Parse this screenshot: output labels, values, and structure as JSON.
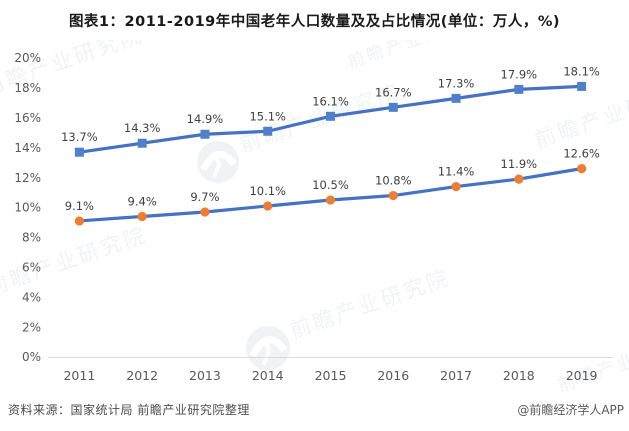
{
  "title": "图表1：2011-2019年中国老年人口数量及及占比情况(单位：万人，%)",
  "chart_data": {
    "type": "line",
    "title": "图表1：2011-2019年中国老年人口数量及及占比情况(单位：万人，%)",
    "categories": [
      "2011",
      "2012",
      "2013",
      "2014",
      "2015",
      "2016",
      "2017",
      "2018",
      "2019"
    ],
    "series": [
      {
        "id": "upper-line",
        "marker": "square",
        "color": "#4472C4",
        "marker_color": "#4E81C9",
        "values": [
          13.7,
          14.3,
          14.9,
          15.1,
          16.1,
          16.7,
          17.3,
          17.9,
          18.1
        ],
        "labels": [
          "13.7%",
          "14.3%",
          "14.9%",
          "15.1%",
          "16.1%",
          "16.7%",
          "17.3%",
          "17.9%",
          "18.1%"
        ]
      },
      {
        "id": "lower-line",
        "marker": "circle",
        "color": "#4472C4",
        "marker_color": "#ED7D31",
        "values": [
          9.1,
          9.4,
          9.7,
          10.1,
          10.5,
          10.8,
          11.4,
          11.9,
          12.6
        ],
        "labels": [
          "9.1%",
          "9.4%",
          "9.7%",
          "10.1%",
          "10.5%",
          "10.8%",
          "11.4%",
          "11.9%",
          "12.6%"
        ]
      }
    ],
    "ylim": [
      0,
      20
    ],
    "ytick_step": 2,
    "yticks": [
      "0%",
      "2%",
      "4%",
      "6%",
      "8%",
      "10%",
      "12%",
      "14%",
      "16%",
      "18%",
      "20%"
    ],
    "grid": false,
    "legend": "none",
    "colors": {
      "axis_line": "#D9D9D9",
      "tick_label": "#595959",
      "data_label": "#404040"
    }
  },
  "watermark": {
    "text": "前瞻产业研究院",
    "color": "#8F9AAB"
  },
  "footer": {
    "source": "资料来源：国家统计局 前瞻产业研究院整理",
    "credit": "@前瞻经济学人APP"
  }
}
